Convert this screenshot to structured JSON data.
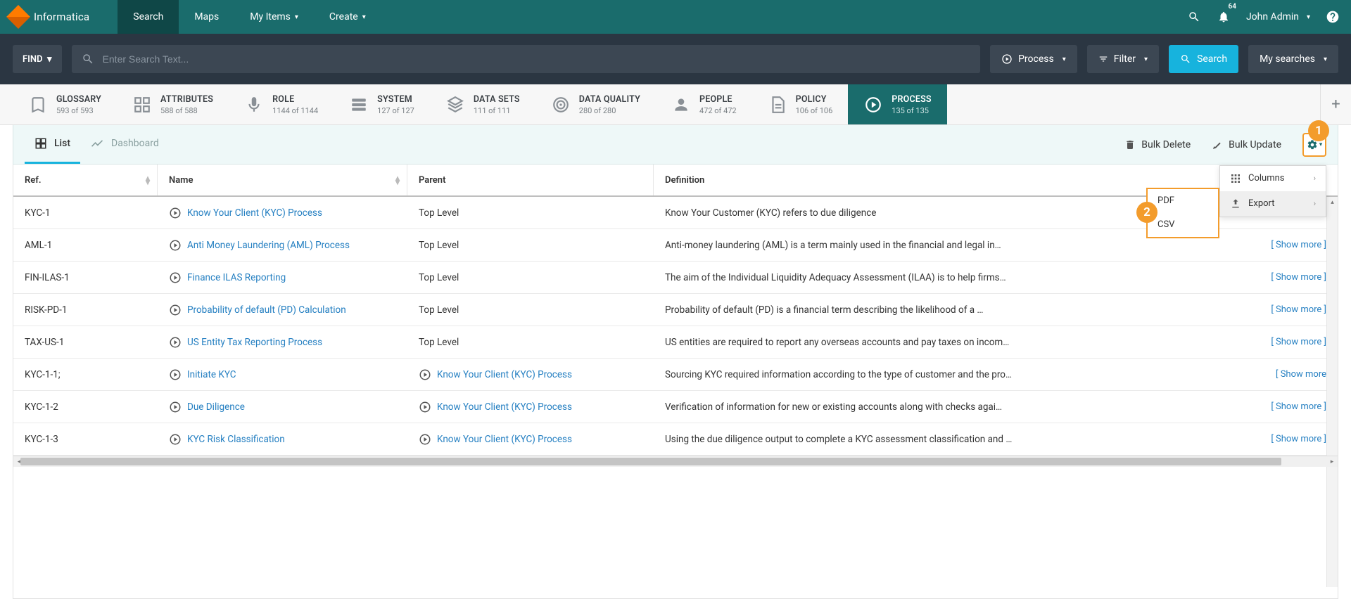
{
  "brand": {
    "name": "Informatica"
  },
  "topnav": {
    "items": [
      {
        "label": "Search",
        "active": true,
        "caret": false
      },
      {
        "label": "Maps",
        "active": false,
        "caret": false
      },
      {
        "label": "My Items",
        "active": false,
        "caret": true
      },
      {
        "label": "Create",
        "active": false,
        "caret": true
      }
    ],
    "notification_count": "64",
    "user": "John Admin"
  },
  "searchrow": {
    "find_label": "FIND",
    "placeholder": "Enter Search Text...",
    "process_label": "Process",
    "filter_label": "Filter",
    "search_label": "Search",
    "mysearches_label": "My searches"
  },
  "categories": [
    {
      "title": "GLOSSARY",
      "sub": "593 of 593",
      "icon": "bookmark"
    },
    {
      "title": "ATTRIBUTES",
      "sub": "588 of 588",
      "icon": "grid"
    },
    {
      "title": "ROLE",
      "sub": "1144 of 1144",
      "icon": "mic"
    },
    {
      "title": "SYSTEM",
      "sub": "127 of 127",
      "icon": "server"
    },
    {
      "title": "DATA SETS",
      "sub": "111 of 111",
      "icon": "layers"
    },
    {
      "title": "DATA QUALITY",
      "sub": "280 of 280",
      "icon": "target"
    },
    {
      "title": "PEOPLE",
      "sub": "472 of 472",
      "icon": "person"
    },
    {
      "title": "POLICY",
      "sub": "106 of 106",
      "icon": "doc"
    },
    {
      "title": "PROCESS",
      "sub": "135 of 135",
      "icon": "process",
      "active": true
    }
  ],
  "viewtabs": {
    "list": "List",
    "dashboard": "Dashboard",
    "bulk_delete": "Bulk Delete",
    "bulk_update": "Bulk Update"
  },
  "dropdown": {
    "columns": "Columns",
    "export": "Export",
    "pdf": "PDF",
    "csv": "CSV"
  },
  "columns": {
    "ref": "Ref.",
    "name": "Name",
    "parent": "Parent",
    "definition": "Definition"
  },
  "rows": [
    {
      "ref": "KYC-1",
      "name": "Know Your Client (KYC) Process",
      "parent": "Top Level",
      "parent_link": false,
      "def": "Know Your Customer (KYC) refers to due diligence",
      "show_more": false
    },
    {
      "ref": "AML-1",
      "name": "Anti Money Laundering (AML) Process",
      "parent": "Top Level",
      "parent_link": false,
      "def": "Anti-money laundering (AML) is a term mainly used in the financial and legal in…",
      "show_more": true
    },
    {
      "ref": "FIN-ILAS-1",
      "name": "Finance ILAS Reporting",
      "parent": "Top Level",
      "parent_link": false,
      "def": "The aim of the Individual Liquidity Adequacy Assessment (ILAA) is to help firms…",
      "show_more": true
    },
    {
      "ref": "RISK-PD-1",
      "name": "Probability of default (PD) Calculation",
      "parent": "Top Level",
      "parent_link": false,
      "def": "Probability of default (PD) is a financial term describing the likelihood of a …",
      "show_more": true
    },
    {
      "ref": "TAX-US-1",
      "name": "US Entity Tax Reporting Process",
      "parent": "Top Level",
      "parent_link": false,
      "def": "US entities are required to report any overseas accounts and pay taxes on incom…",
      "show_more": true
    },
    {
      "ref": "KYC-1-1;",
      "name": "Initiate KYC",
      "parent": "Know Your Client (KYC) Process",
      "parent_link": true,
      "def": "Sourcing KYC required information according to the type of customer and the pro…",
      "show_more": true,
      "show_more_nobracket": true
    },
    {
      "ref": "KYC-1-2",
      "name": "Due Diligence",
      "parent": "Know Your Client (KYC) Process",
      "parent_link": true,
      "def": "Verification of information for new or existing accounts along with checks agai…",
      "show_more": true
    },
    {
      "ref": "KYC-1-3",
      "name": "KYC Risk Classification",
      "parent": "Know Your Client (KYC) Process",
      "parent_link": true,
      "def": "Using the due diligence output to complete a KYC assessment classification and …",
      "show_more": true
    }
  ],
  "show_more_label": "[ Show more ]",
  "show_more_label_nb": "[ Show more",
  "colors": {
    "teal": "#1a6c6c",
    "teal_dark": "#0f4747",
    "slate": "#2b3642",
    "slate_light": "#3c4753",
    "cyan": "#17b3dd",
    "orange": "#f39c2c",
    "link": "#2680c2"
  },
  "annotations": {
    "a1": "1",
    "a2": "2"
  }
}
